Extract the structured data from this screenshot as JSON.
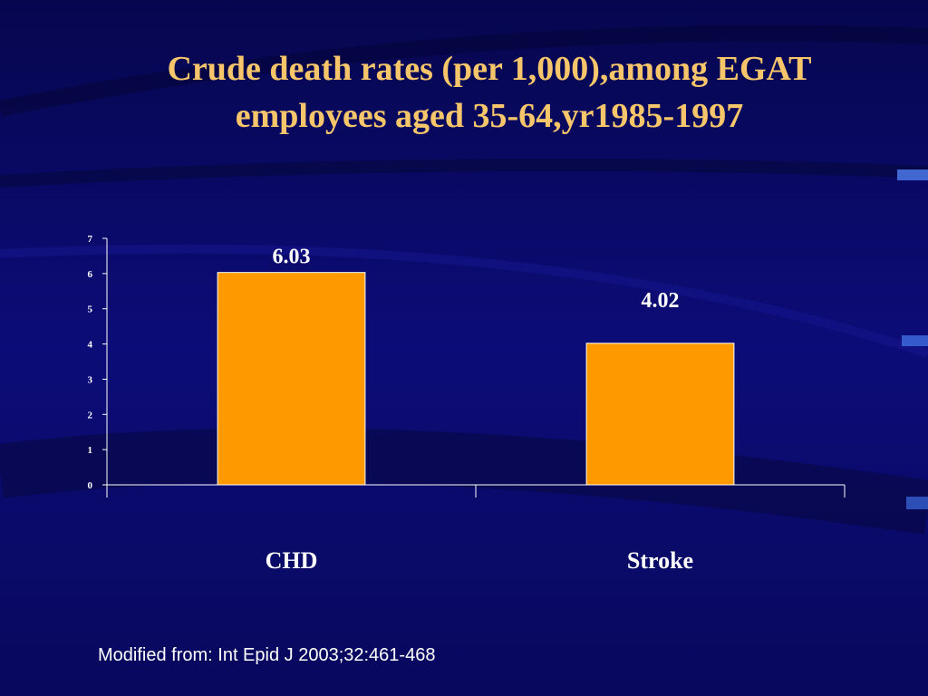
{
  "slide": {
    "title_line1": "Crude death rates (per 1,000),among EGAT",
    "title_line2": "employees aged 35-64,yr1985-1997",
    "source": "Modified from: Int Epid J 2003;32:461-468"
  },
  "chart_data": {
    "type": "bar",
    "title": "",
    "categories": [
      "CHD",
      "Stroke"
    ],
    "values": [
      6.03,
      4.02
    ],
    "data_labels": [
      "6.03",
      "4.02"
    ],
    "ylim": [
      0,
      7
    ],
    "yticks": [
      0,
      1,
      2,
      3,
      4,
      5,
      6,
      7
    ],
    "grid": false,
    "bar_color": "#ff9900",
    "xlabel": "",
    "ylabel": ""
  }
}
